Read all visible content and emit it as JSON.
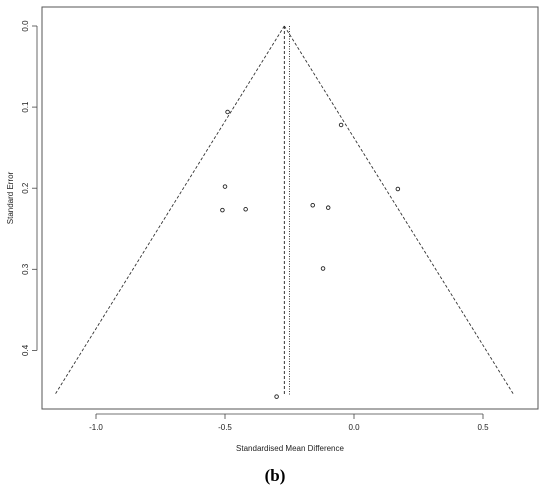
{
  "chart_data": {
    "type": "scatter",
    "subtype": "funnel",
    "title": "",
    "xlabel": "Standardised Mean Difference",
    "ylabel": "Standard Error",
    "xlim": [
      -1.2,
      0.62
    ],
    "ylim": [
      0.462,
      0
    ],
    "y_inverted": true,
    "grid": false,
    "x_ticks": [
      -1.0,
      -0.5,
      0.0,
      0.5
    ],
    "x_tick_labels": [
      "-1.0",
      "-0.5",
      "0.0",
      "0.5"
    ],
    "y_ticks": [
      0.0,
      0.1,
      0.2,
      0.3,
      0.4
    ],
    "y_tick_labels": [
      "0.0",
      "0.1",
      "0.2",
      "0.3",
      "0.4"
    ],
    "points": [
      {
        "x": -0.49,
        "y": 0.106
      },
      {
        "x": -0.05,
        "y": 0.122
      },
      {
        "x": -0.5,
        "y": 0.198
      },
      {
        "x": 0.17,
        "y": 0.201
      },
      {
        "x": -0.51,
        "y": 0.227
      },
      {
        "x": -0.42,
        "y": 0.226
      },
      {
        "x": -0.16,
        "y": 0.221
      },
      {
        "x": -0.1,
        "y": 0.224
      },
      {
        "x": -0.12,
        "y": 0.299
      },
      {
        "x": -0.3,
        "y": 0.457
      }
    ],
    "funnel": {
      "apex": {
        "x": -0.27,
        "y": 0.0
      },
      "base_left": {
        "x": -1.16,
        "y": 0.455
      },
      "base_right": {
        "x": 0.62,
        "y": 0.455
      }
    },
    "reference_lines": [
      {
        "x": -0.27,
        "style": "dashed"
      },
      {
        "x": -0.25,
        "style": "dotted"
      }
    ]
  },
  "caption": "(b)"
}
